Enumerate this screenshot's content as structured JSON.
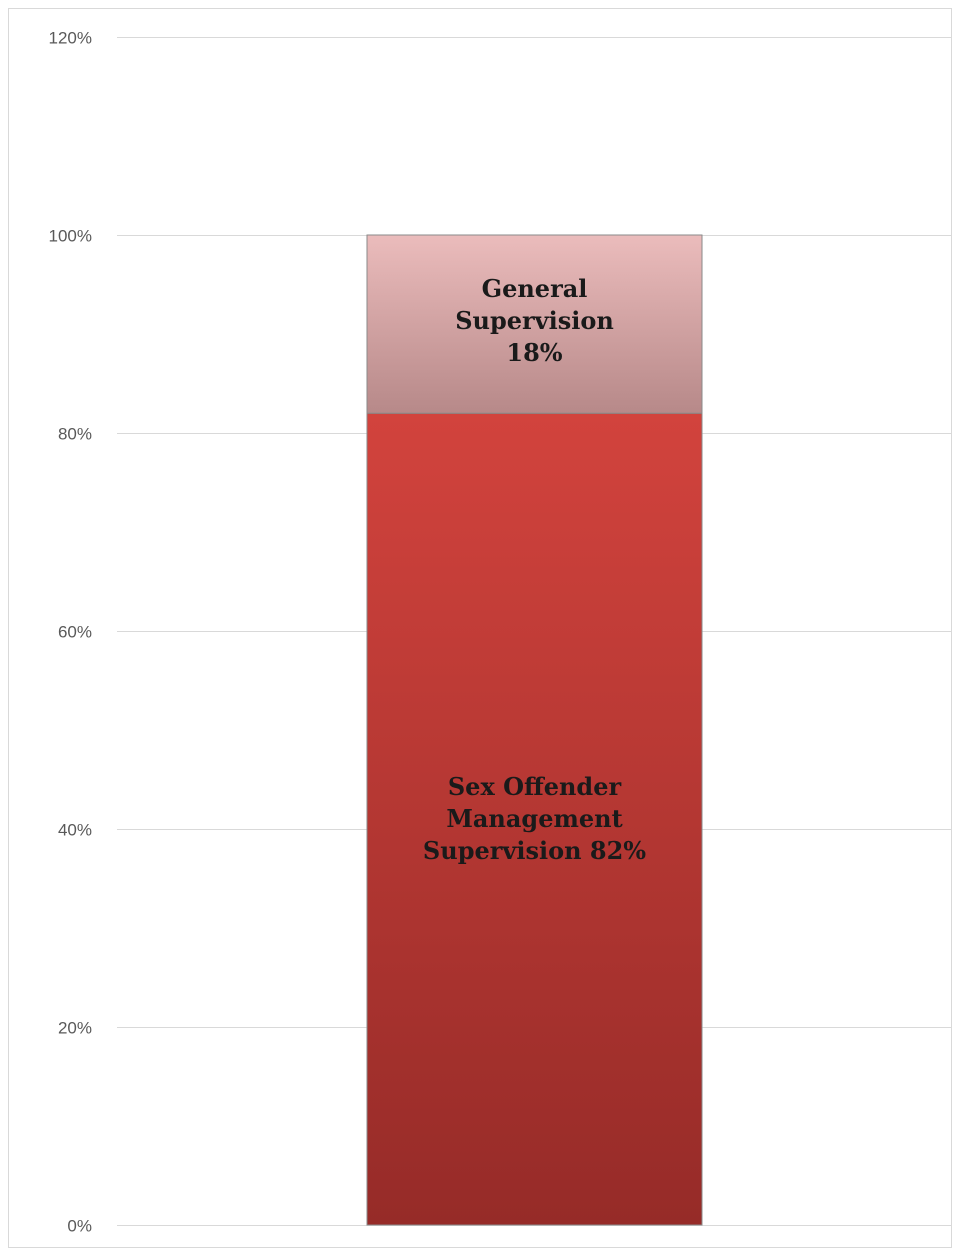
{
  "chart_data": {
    "type": "bar",
    "stacked": true,
    "percent": true,
    "categories": [
      ""
    ],
    "series": [
      {
        "key": "som",
        "values": [
          82
        ],
        "color": "#c23b37",
        "label_lines": [
          "Sex Offender",
          "Management",
          "Supervision 82%"
        ]
      },
      {
        "key": "gen",
        "values": [
          18
        ],
        "color": "#d9a3a3",
        "label_lines": [
          "General",
          "Supervision",
          "18%"
        ]
      }
    ],
    "ylim": [
      0,
      120
    ],
    "yticks": [
      0,
      20,
      40,
      60,
      80,
      100,
      120
    ],
    "ytick_labels": [
      "0%",
      "20%",
      "40%",
      "60%",
      "80%",
      "100%",
      "120%"
    ],
    "grid": true,
    "legend": "none",
    "title": "",
    "xlabel": "",
    "ylabel": ""
  }
}
